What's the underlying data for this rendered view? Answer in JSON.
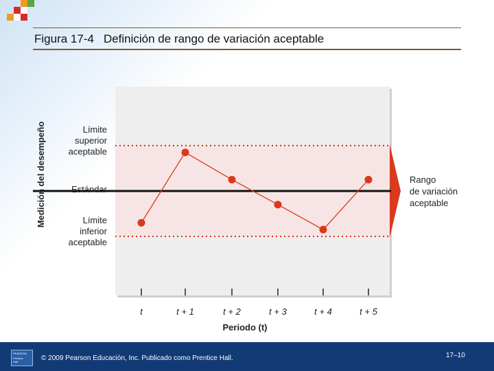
{
  "slide": {
    "figure_number": "Figura 17-4",
    "figure_title": "Definición de rango de variación aceptable"
  },
  "footer": {
    "copyright": "© 2009 Pearson Educación, Inc. Publicado como Prentice Hall.",
    "page": "17–10"
  },
  "colors": {
    "accent_red": "#d93a1c",
    "band_fill": "#f7e4e4",
    "plot_bg": "#eeeeee",
    "footer_bg": "#123a75"
  },
  "chart_data": {
    "type": "line",
    "xlabel": "Periodo (t)",
    "ylabel": "Medición del desempeño",
    "categories": [
      "t",
      "t + 1",
      "t + 2",
      "t + 3",
      "t + 4",
      "t + 5"
    ],
    "series": [
      {
        "values": [
          -1.4,
          1.7,
          0.5,
          -0.6,
          -1.7,
          0.5
        ]
      }
    ],
    "reference_lines": [
      {
        "label": "Límite superior aceptable",
        "value": 2.0,
        "style": "dotted"
      },
      {
        "label": "Estándar",
        "value": 0.0,
        "style": "solid"
      },
      {
        "label": "Límite inferior aceptable",
        "value": -2.0,
        "style": "dotted"
      }
    ],
    "reference_label_lines": [
      [
        "Límite",
        "superior",
        "aceptable"
      ],
      [
        "Estándar"
      ],
      [
        "Límite",
        "inferior",
        "aceptable"
      ]
    ],
    "range_annotation": [
      "Rango",
      "de variación",
      "aceptable"
    ],
    "ylim": [
      -4.6,
      4.6
    ],
    "grid": false
  }
}
